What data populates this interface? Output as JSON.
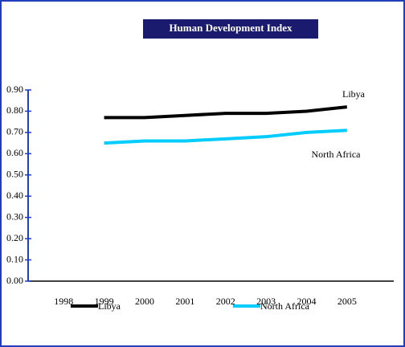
{
  "chart_data": {
    "type": "line",
    "title": "Human Development Index",
    "categories": [
      "1998",
      "1999",
      "2000",
      "2001",
      "2002",
      "2003",
      "2004",
      "2005"
    ],
    "series": [
      {
        "name": "Libya",
        "color": "#000000",
        "values": [
          null,
          0.77,
          0.77,
          0.78,
          0.79,
          0.79,
          0.8,
          0.82
        ]
      },
      {
        "name": "North Africa",
        "color": "#00ccff",
        "values": [
          null,
          0.65,
          0.66,
          0.66,
          0.67,
          0.68,
          0.7,
          0.71
        ]
      }
    ],
    "ylim": [
      0,
      0.9
    ],
    "yticks": [
      {
        "value": 0,
        "label": "0.00"
      },
      {
        "value": 0.1,
        "label": "0.10"
      },
      {
        "value": 0.2,
        "label": "0.20"
      },
      {
        "value": 0.3,
        "label": "0.30"
      },
      {
        "value": 0.4,
        "label": "0.40"
      },
      {
        "value": 0.5,
        "label": "0.50"
      },
      {
        "value": 0.6,
        "label": "0.60"
      },
      {
        "value": 0.7,
        "label": "0.70"
      },
      {
        "value": 0.8,
        "label": "0.80"
      },
      {
        "value": 0.9,
        "label": "0.90"
      }
    ],
    "legend": "bottom"
  }
}
